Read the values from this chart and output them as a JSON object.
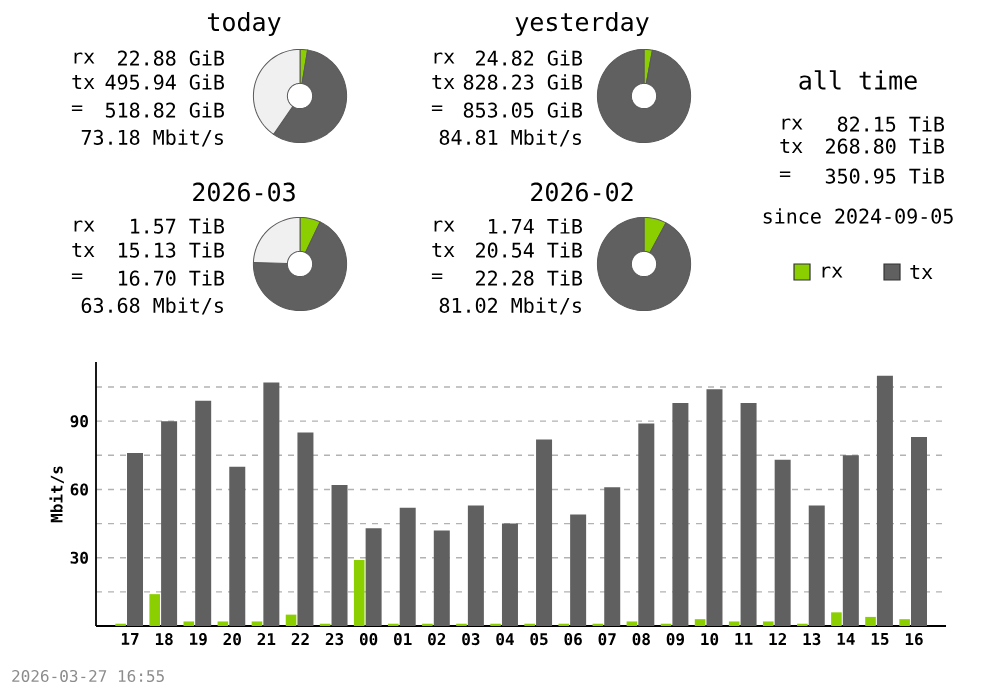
{
  "chart_data": [
    {
      "type": "donut",
      "title": "today",
      "categories": [
        null,
        null,
        null
      ],
      "values": [
        2.6,
        57.0,
        40.4
      ],
      "colors": [
        "#8ccf00",
        "#606060",
        "#f0f0f0"
      ],
      "annotations": [
        "rx",
        "22.88 GiB",
        "tx",
        "495.94 GiB",
        "=",
        "518.82 GiB",
        "73.18 Mbit/s"
      ]
    },
    {
      "type": "donut",
      "title": "yesterday",
      "categories": [
        null,
        null
      ],
      "values": [
        2.9,
        97.1
      ],
      "colors": [
        "#8ccf00",
        "#606060"
      ],
      "annotations": [
        "rx",
        "24.82 GiB",
        "tx",
        "828.23 GiB",
        "=",
        "853.05 GiB",
        "84.81 Mbit/s"
      ]
    },
    {
      "type": "other",
      "title": "all time",
      "annotations": [
        "rx",
        "82.15 TiB",
        "tx",
        "268.80 TiB",
        "=",
        "350.95 TiB",
        "since 2024-09-05"
      ]
    },
    {
      "type": "donut",
      "title": "2026-03",
      "categories": [
        null,
        null,
        null
      ],
      "values": [
        7.1,
        68.4,
        24.5
      ],
      "colors": [
        "#8ccf00",
        "#606060",
        "#f0f0f0"
      ],
      "annotations": [
        "rx",
        "1.57 TiB",
        "tx",
        "15.13 TiB",
        "=",
        "16.70 TiB",
        "63.68 Mbit/s"
      ]
    },
    {
      "type": "donut",
      "title": "2026-02",
      "categories": [
        null,
        null
      ],
      "values": [
        7.8,
        92.2
      ],
      "colors": [
        "#8ccf00",
        "#606060"
      ],
      "annotations": [
        "rx",
        "1.74 TiB",
        "tx",
        "20.54 TiB",
        "=",
        "22.28 TiB",
        "81.02 Mbit/s"
      ]
    },
    {
      "type": "bar",
      "ylabel": "Mbit/s",
      "categories": [
        "17",
        "18",
        "19",
        "20",
        "21",
        "22",
        "23",
        "00",
        "01",
        "02",
        "03",
        "04",
        "05",
        "06",
        "07",
        "08",
        "09",
        "10",
        "11",
        "12",
        "13",
        "14",
        "15",
        "16"
      ],
      "series": [
        {
          "name": "rx",
          "color": "#8ccf00",
          "values": [
            1,
            14,
            2,
            2,
            2,
            5,
            1,
            29,
            1,
            1,
            1,
            1,
            1,
            1,
            1,
            2,
            1,
            3,
            2,
            2,
            1,
            6,
            4,
            3
          ]
        },
        {
          "name": "tx",
          "color": "#606060",
          "values": [
            76,
            90,
            99,
            70,
            107,
            85,
            62,
            43,
            52,
            42,
            53,
            45,
            82,
            49,
            61,
            89,
            98,
            104,
            98,
            73,
            53,
            75,
            110,
            83
          ]
        }
      ],
      "ylim": [
        0,
        116
      ],
      "yticks": [
        {
          "value": 15,
          "label": null
        },
        30,
        {
          "value": 45,
          "label": null
        },
        60,
        {
          "value": 75,
          "label": null
        },
        90,
        {
          "value": 105,
          "label": null
        }
      ],
      "grid": "y",
      "legend": "top right",
      "annotations": [
        "2026-03-27 16:55"
      ]
    }
  ]
}
